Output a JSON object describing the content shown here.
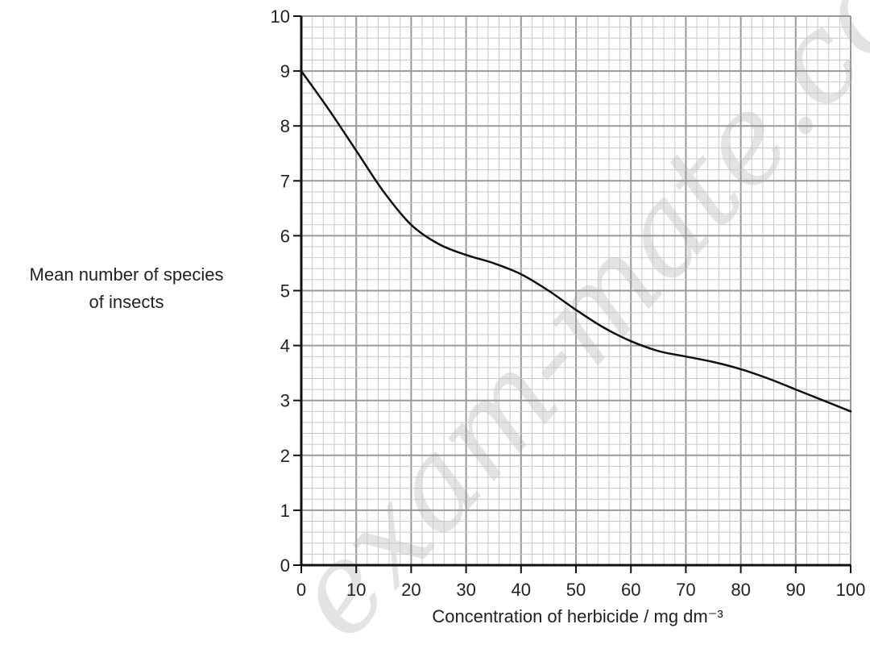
{
  "watermark": "exam-mate.com",
  "chart_data": {
    "type": "line",
    "xlabel": "Concentration of herbicide / mg dm⁻³",
    "ylabel_lines": [
      "Mean number of species",
      "of insects"
    ],
    "xlim": [
      0,
      100
    ],
    "ylim": [
      0,
      10
    ],
    "x_ticks": [
      0,
      10,
      20,
      30,
      40,
      50,
      60,
      70,
      80,
      90,
      100
    ],
    "y_ticks": [
      0,
      1,
      2,
      3,
      4,
      5,
      6,
      7,
      8,
      9,
      10
    ],
    "grid": true,
    "series": [
      {
        "x": [
          0,
          5,
          10,
          15,
          20,
          25,
          30,
          35,
          40,
          45,
          50,
          55,
          60,
          65,
          70,
          75,
          80,
          85,
          90,
          95,
          100
        ],
        "y": [
          9.0,
          8.3,
          7.55,
          6.8,
          6.2,
          5.85,
          5.65,
          5.5,
          5.3,
          5.0,
          4.65,
          4.33,
          4.08,
          3.9,
          3.8,
          3.7,
          3.57,
          3.4,
          3.2,
          3.0,
          2.8
        ]
      }
    ],
    "colors": {
      "line": "#111111",
      "grid_minor": "#c8c8c8",
      "grid_major": "#9a9a9a",
      "axis": "#111111"
    }
  }
}
